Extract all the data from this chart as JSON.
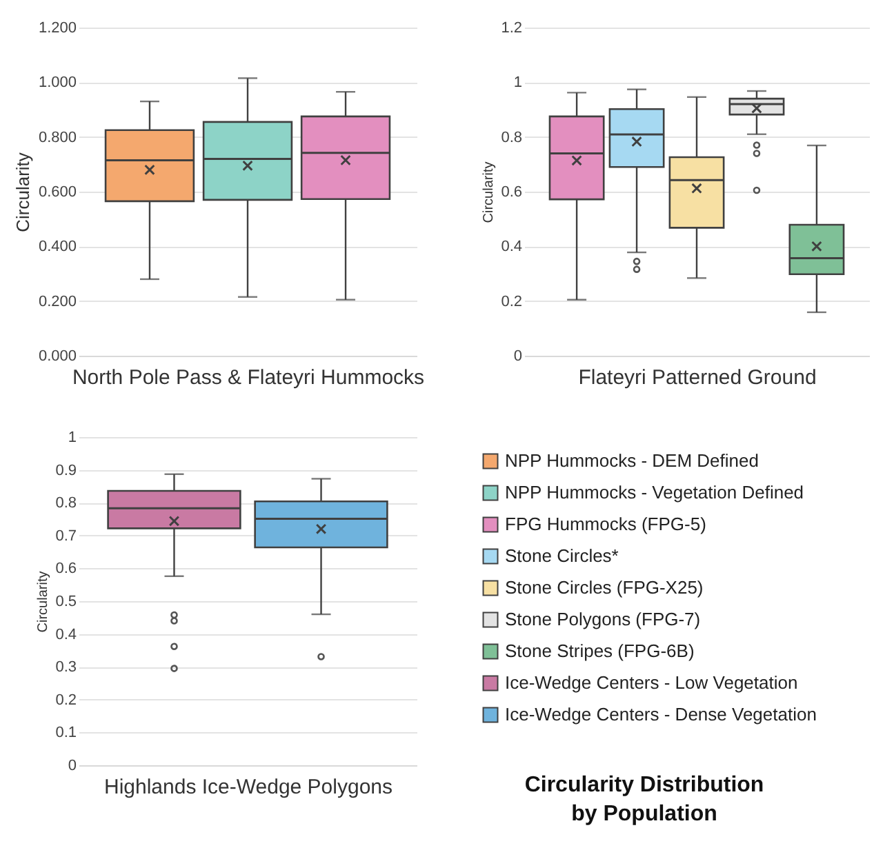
{
  "chart_data": [
    {
      "type": "box",
      "xlabel": "North Pole Pass & Flateyri Hummocks",
      "ylabel": "Circularity",
      "categories": [
        null
      ],
      "ylim": [
        0,
        1.2
      ],
      "yticks": [
        {
          "value": 0,
          "label": "0.000"
        },
        {
          "value": 0.2,
          "label": "0.200"
        },
        {
          "value": 0.4,
          "label": "0.400"
        },
        {
          "value": 0.6,
          "label": "0.600"
        },
        {
          "value": 0.8,
          "label": "0.800"
        },
        {
          "value": 1,
          "label": "1.000"
        },
        {
          "value": 1.2,
          "label": "1.200"
        }
      ],
      "grid": "y",
      "legend": "bottom right",
      "series": [
        {
          "name": "NPP Hummocks - DEM Defined",
          "color": "#f4a86e",
          "boxes": [
            {
              "low": 0.28,
              "q1": 0.565,
              "median": 0.715,
              "q3": 0.825,
              "high": 0.93,
              "mean": 0.68
            }
          ]
        },
        {
          "name": "NPP Hummocks - Vegetation Defined",
          "color": "#8dd3c7",
          "boxes": [
            {
              "low": 0.215,
              "q1": 0.57,
              "median": 0.72,
              "q3": 0.855,
              "high": 1.015,
              "mean": 0.695
            }
          ]
        },
        {
          "name": "FPG Hummocks (FPG-5)",
          "color": "#e38fbf",
          "boxes": [
            {
              "low": 0.205,
              "q1": 0.573,
              "median": 0.742,
              "q3": 0.875,
              "high": 0.965,
              "mean": 0.715
            }
          ]
        }
      ]
    },
    {
      "type": "box",
      "xlabel": "Flateyri Patterned Ground",
      "ylabel": "Circularity",
      "categories": [
        null
      ],
      "ylim": [
        0,
        1.2
      ],
      "yticks": [
        0,
        0.2,
        0.4,
        0.6,
        0.8,
        1,
        1.2
      ],
      "grid": "y",
      "legend": "bottom",
      "series": [
        {
          "name": "FPG Hummocks (FPG-5)",
          "color": "#e38fbf",
          "boxes": [
            {
              "low": 0.205,
              "q1": 0.572,
              "median": 0.74,
              "q3": 0.875,
              "high": 0.962,
              "mean": 0.714
            }
          ]
        },
        {
          "name": "Stone Circles*",
          "color": "#a6d9f2",
          "boxes": [
            {
              "low": 0.378,
              "q1": 0.69,
              "median": 0.809,
              "q3": 0.902,
              "high": 0.974,
              "mean": 0.783,
              "outliers": [
                0.345,
                0.316
              ]
            }
          ]
        },
        {
          "name": "Stone Circles (FPG-X25)",
          "color": "#f7e0a3",
          "boxes": [
            {
              "low": 0.284,
              "q1": 0.468,
              "median": 0.642,
              "q3": 0.726,
              "high": 0.946,
              "mean": 0.612
            }
          ]
        },
        {
          "name": "Stone Polygons (FPG-7)",
          "color": "#e3e3e3",
          "boxes": [
            {
              "low": 0.81,
              "q1": 0.882,
              "median": 0.92,
              "q3": 0.94,
              "high": 0.968,
              "mean": 0.905,
              "outliers": [
                0.77,
                0.74,
                0.605
              ]
            }
          ]
        },
        {
          "name": "Stone Stripes (FPG-6B)",
          "color": "#7fc097",
          "boxes": [
            {
              "low": 0.159,
              "q1": 0.298,
              "median": 0.357,
              "q3": 0.479,
              "high": 0.769,
              "mean": 0.4
            }
          ]
        }
      ]
    },
    {
      "type": "box",
      "xlabel": "Highlands Ice-Wedge Polygons",
      "ylabel": "Circularity",
      "categories": [
        null
      ],
      "ylim": [
        0,
        1
      ],
      "yticks": [
        0,
        0.1,
        0.2,
        0.3,
        0.4,
        0.5,
        0.6,
        0.7,
        0.8,
        0.9,
        1
      ],
      "grid": "y",
      "legend": "right",
      "series": [
        {
          "name": "Ice-Wedge Centers - Low Vegetation",
          "color": "#c97aa3",
          "boxes": [
            {
              "low": 0.576,
              "q1": 0.722,
              "median": 0.783,
              "q3": 0.836,
              "high": 0.887,
              "mean": 0.744,
              "outliers": [
                0.458,
                0.44,
                0.362,
                0.295
              ]
            }
          ]
        },
        {
          "name": "Ice-Wedge Centers - Dense Vegetation",
          "color": "#6fb3dd",
          "boxes": [
            {
              "low": 0.46,
              "q1": 0.664,
              "median": 0.751,
              "q3": 0.804,
              "high": 0.873,
              "mean": 0.72,
              "outliers": [
                0.331
              ]
            }
          ]
        }
      ]
    },
    {
      "type": "other",
      "title": "Circularity Distribution by Population"
    }
  ]
}
